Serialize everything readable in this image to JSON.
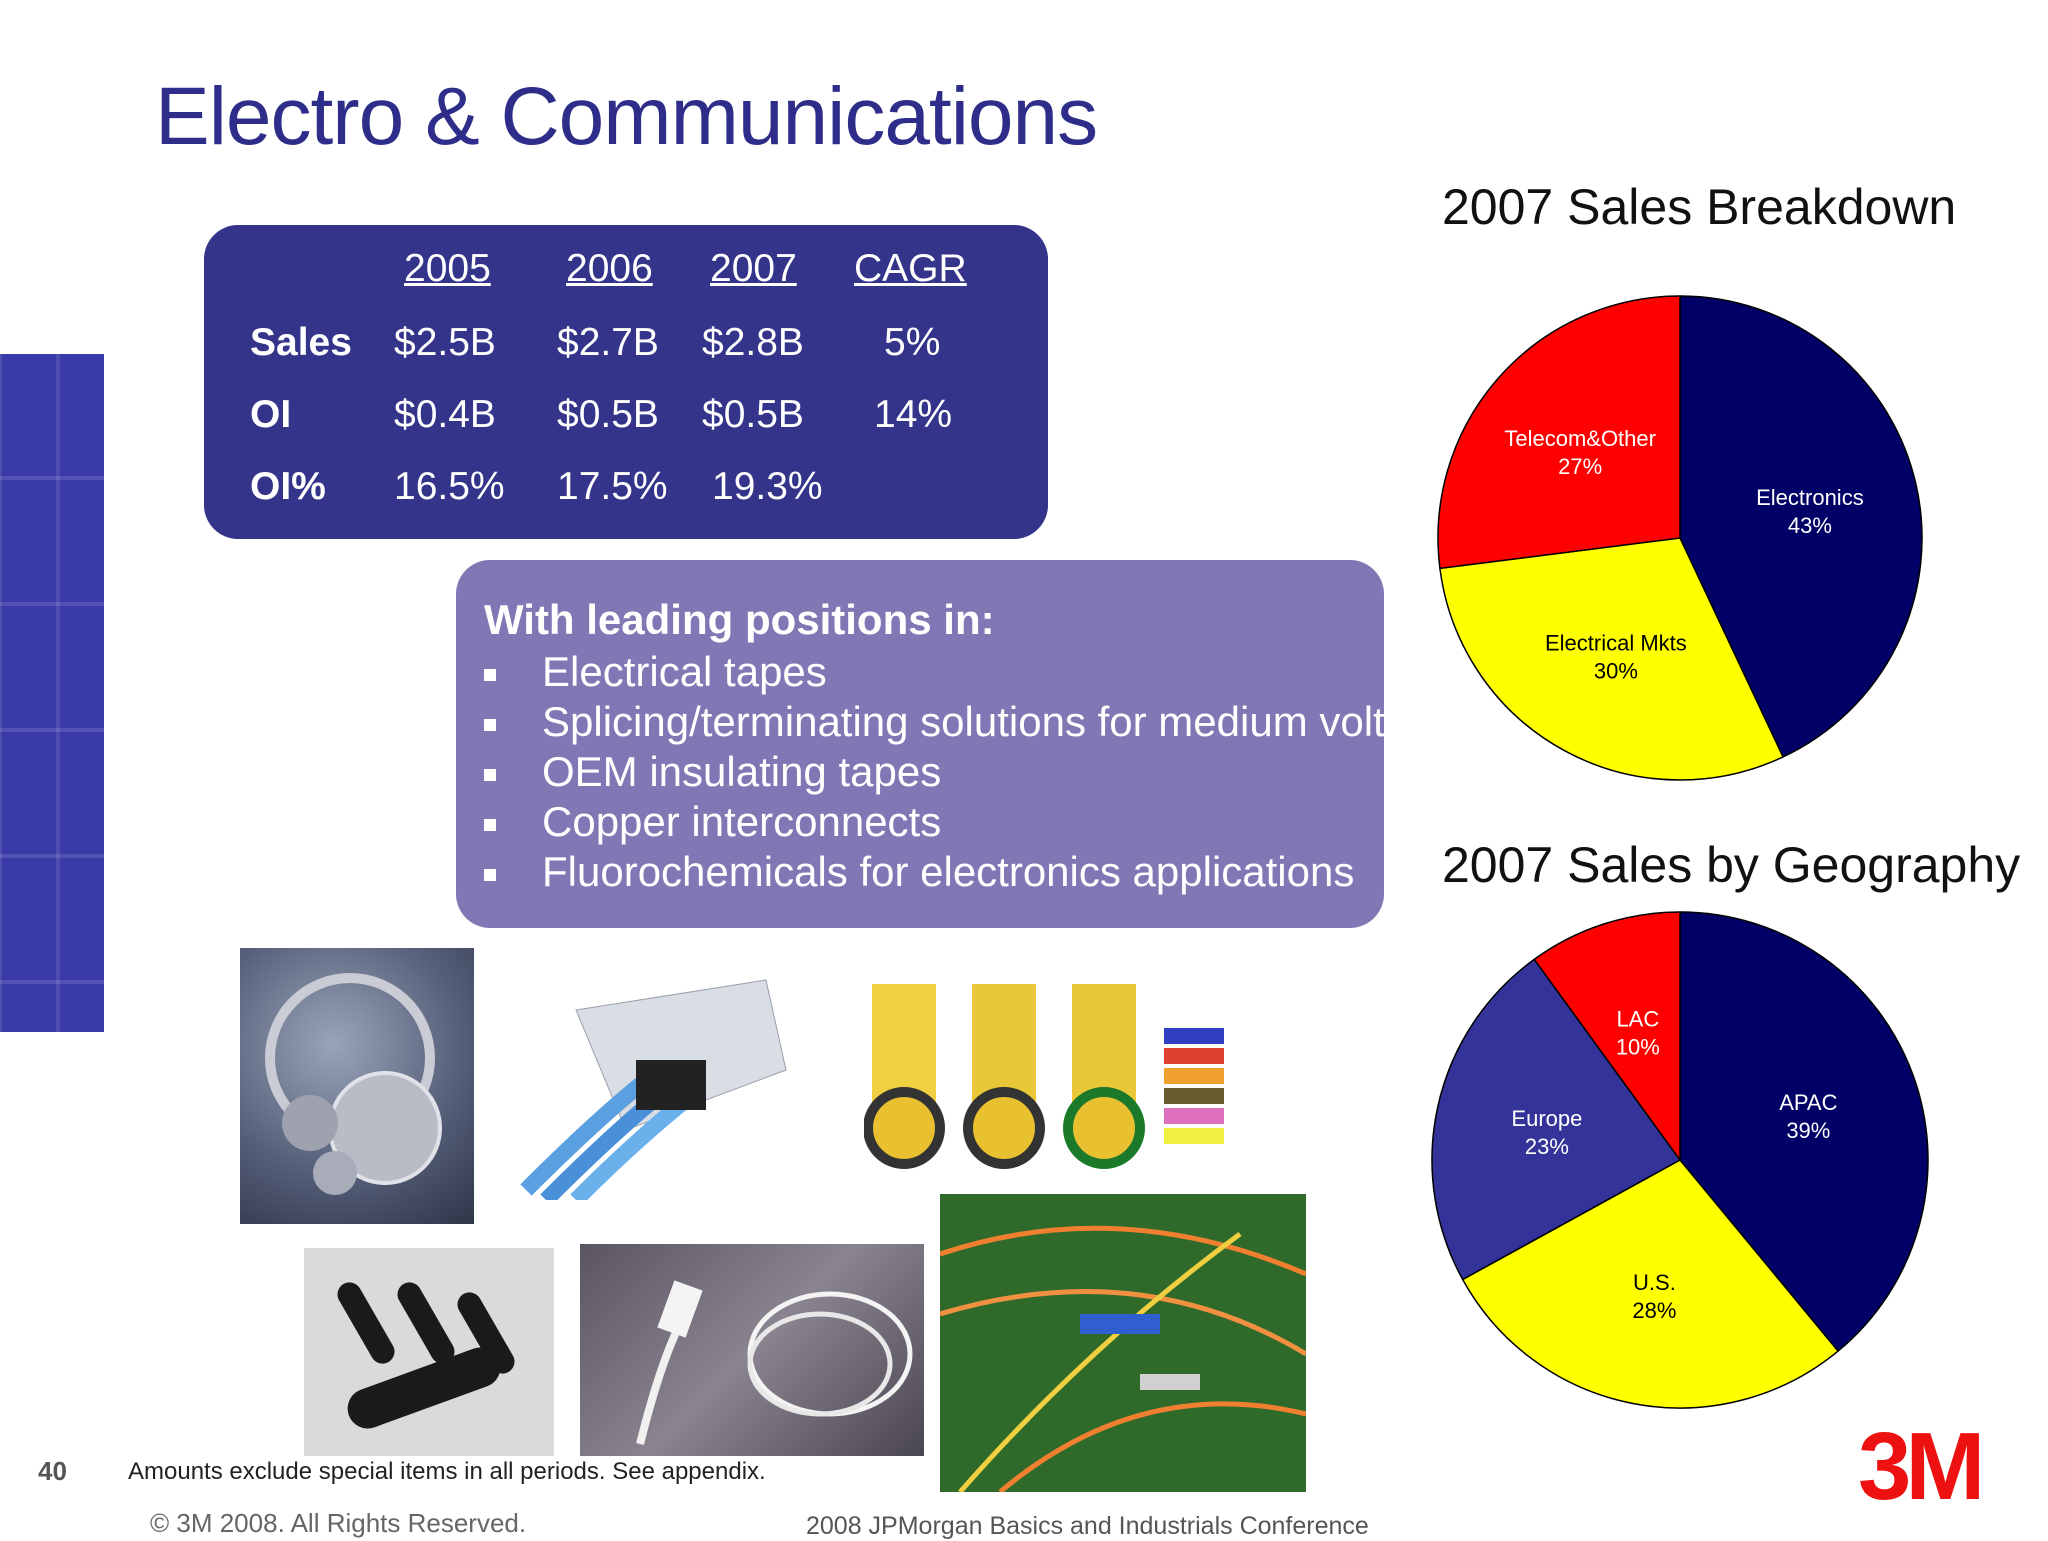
{
  "title": "Electro & Communications",
  "financials": {
    "headers": [
      "2005",
      "2006",
      "2007",
      "CAGR"
    ],
    "rows": [
      {
        "label": "Sales",
        "values": [
          "$2.5B",
          "$2.7B",
          "$2.8B",
          "5%"
        ]
      },
      {
        "label": "OI",
        "values": [
          "$0.4B",
          "$0.5B",
          "$0.5B",
          "14%"
        ]
      },
      {
        "label": "OI%",
        "values": [
          "16.5%",
          "17.5%",
          "19.3%",
          ""
        ]
      }
    ]
  },
  "positions": {
    "heading": "With leading positions in:",
    "items": [
      "Electrical tapes",
      "Splicing/terminating solutions for medium voltage",
      "OEM insulating tapes",
      "Copper interconnects",
      "Fluorochemicals for electronics applications"
    ]
  },
  "chart_data": [
    {
      "type": "pie",
      "title": "2007 Sales Breakdown",
      "slices": [
        {
          "label": "Electronics",
          "value": 43,
          "display": "43%",
          "color": "#000066",
          "text_color": "#ffffff"
        },
        {
          "label": "Electrical Mkts",
          "value": 30,
          "display": "30%",
          "color": "#ffff00",
          "text_color": "#000000"
        },
        {
          "label": "Telecom&Other",
          "value": 27,
          "display": "27%",
          "color": "#ff0000",
          "text_color": "#ffffff"
        }
      ]
    },
    {
      "type": "pie",
      "title": "2007 Sales by Geography",
      "slices": [
        {
          "label": "APAC",
          "value": 39,
          "display": "39%",
          "color": "#000066",
          "text_color": "#ffffff"
        },
        {
          "label": "U.S.",
          "value": 28,
          "display": "28%",
          "color": "#ffff00",
          "text_color": "#000000"
        },
        {
          "label": "Europe",
          "value": 23,
          "display": "23%",
          "color": "#333399",
          "text_color": "#ffffff"
        },
        {
          "label": "LAC",
          "value": 10,
          "display": "10%",
          "color": "#ff0000",
          "text_color": "#ffffff"
        }
      ]
    }
  ],
  "footer": {
    "page_number": "40",
    "note": "Amounts exclude special items in all periods. See appendix.",
    "copyright": "© 3M 2008.  All Rights Reserved.",
    "conference": "2008 JPMorgan Basics and Industrials Conference"
  },
  "logo": "3M"
}
